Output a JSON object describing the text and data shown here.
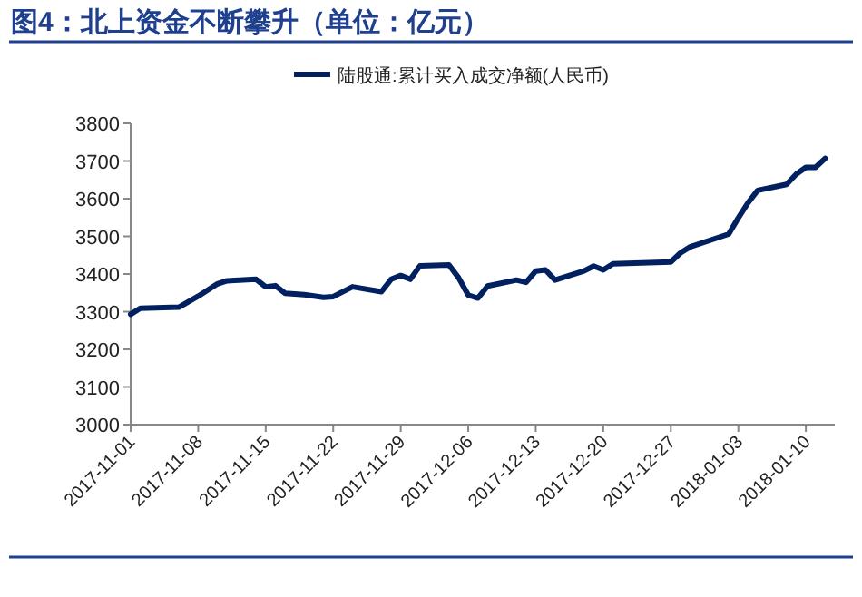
{
  "chart_data": {
    "type": "line",
    "title": "图4：北上资金不断攀升（单位：亿元）",
    "x": [
      "2017-11-01",
      "2017-11-02",
      "2017-11-06",
      "2017-11-08",
      "2017-11-10",
      "2017-11-11",
      "2017-11-14",
      "2017-11-15",
      "2017-11-16",
      "2017-11-17",
      "2017-11-19",
      "2017-11-21",
      "2017-11-22",
      "2017-11-24",
      "2017-11-27",
      "2017-11-28",
      "2017-11-29",
      "2017-11-30",
      "2017-12-01",
      "2017-12-04",
      "2017-12-05",
      "2017-12-06",
      "2017-12-07",
      "2017-12-08",
      "2017-12-11",
      "2017-12-12",
      "2017-12-13",
      "2017-12-14",
      "2017-12-15",
      "2017-12-18",
      "2017-12-19",
      "2017-12-20",
      "2017-12-21",
      "2017-12-27",
      "2017-12-28",
      "2017-12-29",
      "2018-01-02",
      "2018-01-03",
      "2018-01-04",
      "2018-01-05",
      "2018-01-08",
      "2018-01-09",
      "2018-01-10",
      "2018-01-11",
      "2018-01-12"
    ],
    "series": [
      {
        "name": "陆股通:累计买入成交净额(人民币)",
        "color": "#002060",
        "values": [
          3293,
          3309,
          3312,
          3341,
          3374,
          3382,
          3386,
          3366,
          3369,
          3349,
          3345,
          3338,
          3340,
          3366,
          3353,
          3386,
          3396,
          3386,
          3422,
          3424,
          3390,
          3344,
          3336,
          3368,
          3384,
          3378,
          3408,
          3411,
          3384,
          3408,
          3421,
          3411,
          3427,
          3432,
          3456,
          3472,
          3506,
          3549,
          3589,
          3622,
          3638,
          3665,
          3683,
          3683,
          3707
        ]
      }
    ],
    "xlim": [
      "2017-11-01",
      "2018-01-13"
    ],
    "xticks": [
      "2017-11-01",
      "2017-11-08",
      "2017-11-15",
      "2017-11-22",
      "2017-11-29",
      "2017-12-06",
      "2017-12-13",
      "2017-12-20",
      "2017-12-27",
      "2018-01-03",
      "2018-01-10"
    ],
    "ylim": [
      3000,
      3800
    ],
    "yticks": [
      3000,
      3100,
      3200,
      3300,
      3400,
      3500,
      3600,
      3700,
      3800
    ],
    "grid": false,
    "legend": "top",
    "marker": "none",
    "line_style": "solid"
  }
}
